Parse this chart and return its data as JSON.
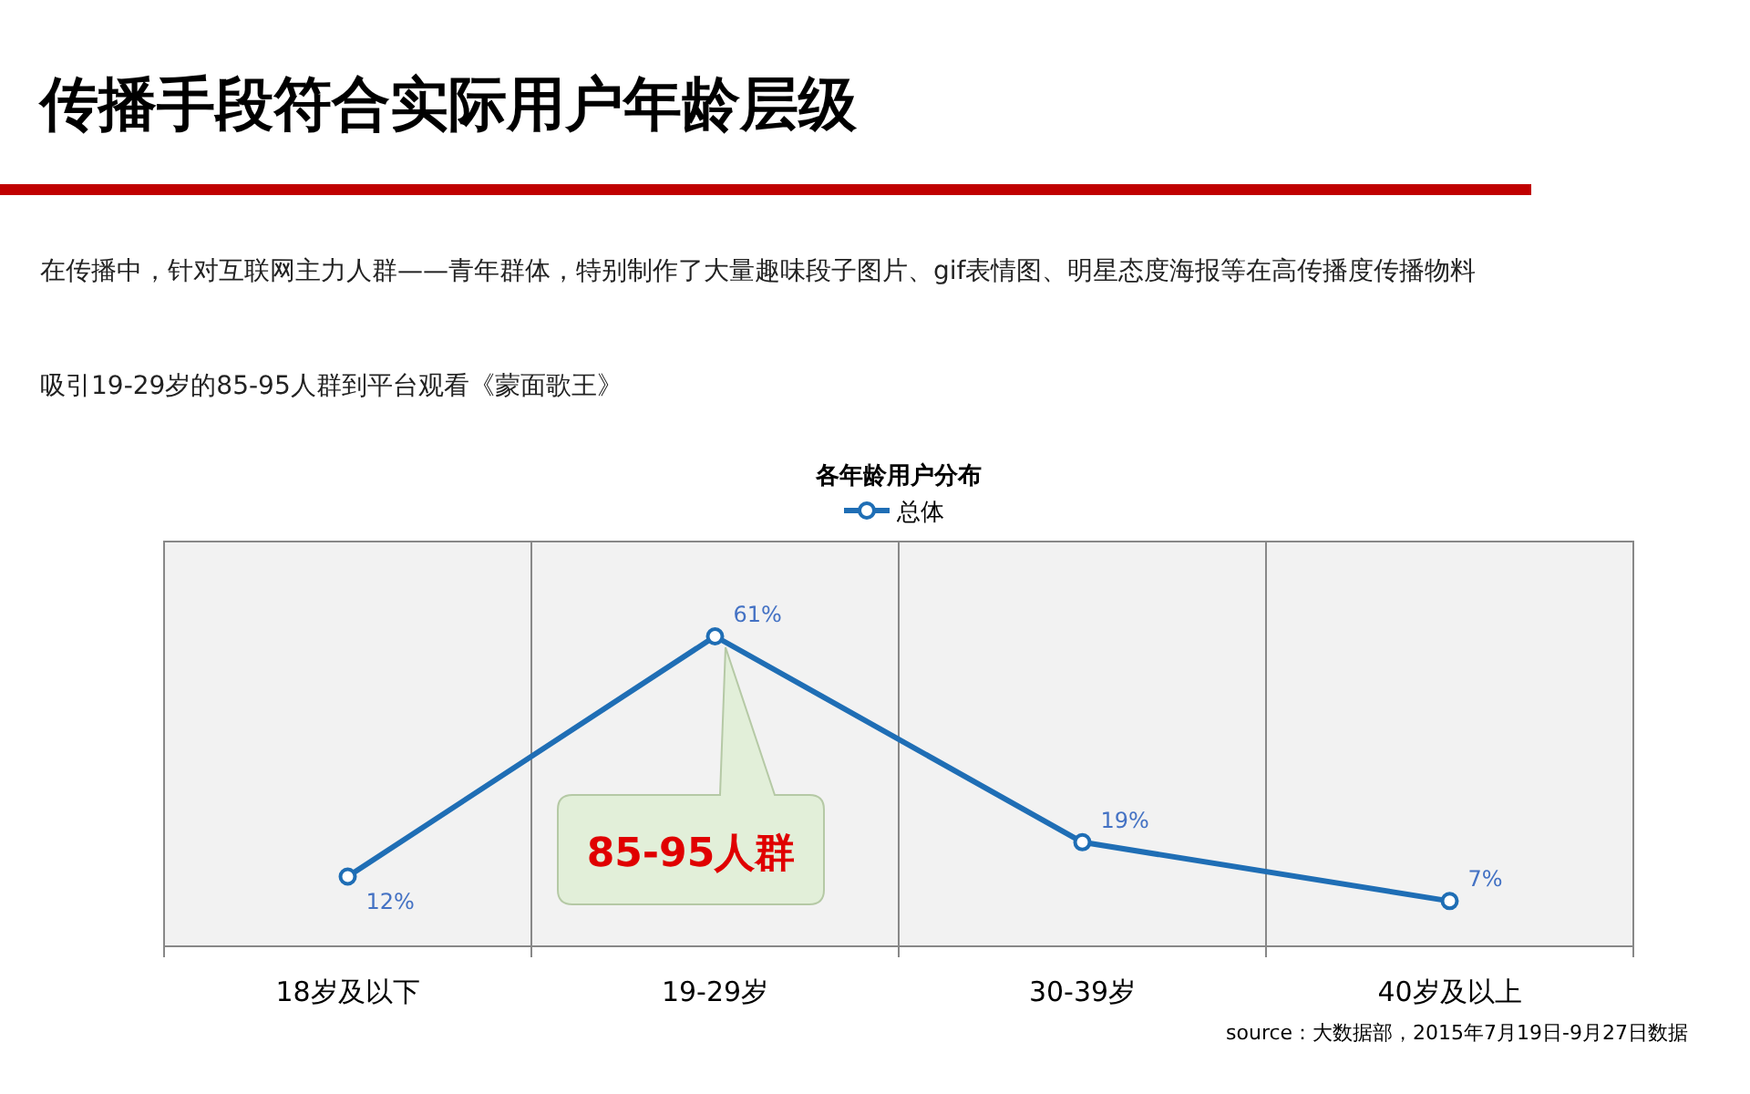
{
  "chart_data": {
    "type": "line",
    "title": "传播手段符合实际用户年龄层级",
    "subtitle": "各年龄用户分布",
    "categories": [
      "18岁及以下",
      "19-29岁",
      "30-39岁",
      "40岁及以上"
    ],
    "series": [
      {
        "name": "总体",
        "color": "#1f6eb5",
        "values": [
          12,
          61,
          19,
          7
        ],
        "value_labels": [
          "12%",
          "61%",
          "19%",
          "7%"
        ]
      }
    ],
    "tick_labels": "x",
    "grid": "x",
    "legend": "top",
    "marker": "circle",
    "line_style": "solid",
    "annotations": [
      "在传播中，针对互联网主力人群——青年群体，特别制作了大量趣味段子图片、gif表情图、明星态度海报等在高传播度传播物料",
      "吸引19-29岁的85-95人群到平台观看《蒙面歌王》",
      "source：大数据部，2015年7月19日-9月27日数据",
      "85-95人群"
    ]
  }
}
